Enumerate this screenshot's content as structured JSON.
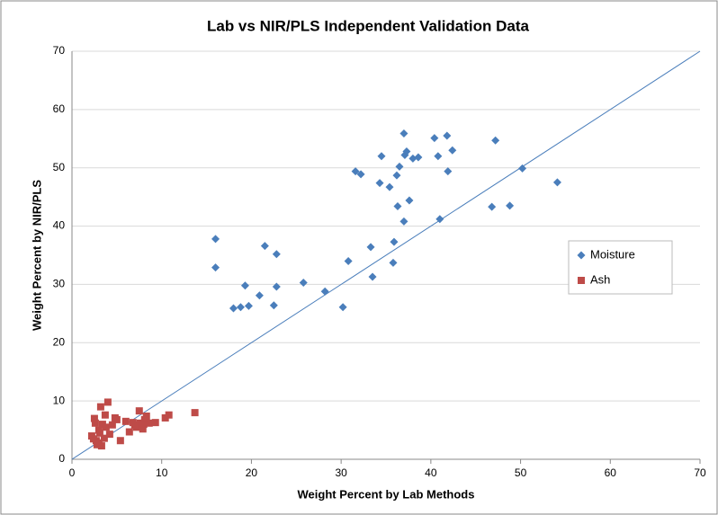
{
  "chart_data": {
    "type": "scatter",
    "title": "Lab vs NIR/PLS Independent Validation Data",
    "x_label": "Weight Percent by Lab Methods",
    "y_label": "Weight Percent by NIR/PLS",
    "xlim": [
      0,
      70
    ],
    "ylim": [
      0,
      70
    ],
    "xticks": [
      0,
      10,
      20,
      30,
      40,
      50,
      60,
      70
    ],
    "yticks": [
      0,
      10,
      20,
      30,
      40,
      50,
      60,
      70
    ],
    "grid": true,
    "legend": "right",
    "series": [
      {
        "name": "Moisture",
        "color": "#4a7ebb",
        "marker": "diamond",
        "x": [
          16,
          16,
          18,
          18.8,
          19.3,
          19.7,
          20.9,
          21.5,
          22.5,
          22.8,
          22.8,
          25.8,
          28.2,
          30.2,
          30.8,
          31.6,
          32.2,
          33.3,
          33.5,
          34.3,
          34.5,
          35.4,
          35.8,
          35.9,
          36.2,
          36.3,
          36.5,
          37,
          37,
          37.1,
          37.3,
          37.6,
          38,
          38.6,
          40.4,
          40.8,
          41,
          41.8,
          41.9,
          42.4,
          46.8,
          47.2,
          48.8,
          50.2,
          54.1
        ],
        "values": [
          37.8,
          32.9,
          25.9,
          26.1,
          29.8,
          26.3,
          28.1,
          36.6,
          26.4,
          29.6,
          35.2,
          30.3,
          28.8,
          26.1,
          34,
          49.4,
          48.9,
          36.4,
          31.3,
          47.4,
          52,
          46.7,
          33.7,
          37.3,
          48.7,
          43.4,
          50.2,
          55.9,
          40.8,
          52.2,
          52.8,
          44.4,
          51.6,
          51.8,
          55.1,
          52,
          41.2,
          55.5,
          49.4,
          53,
          43.3,
          54.7,
          43.5,
          49.9,
          47.5
        ]
      },
      {
        "name": "Ash",
        "color": "#be4b48",
        "marker": "square",
        "x": [
          2.2,
          2.5,
          2.6,
          2.7,
          2.8,
          3,
          3.1,
          3.2,
          3.3,
          3.4,
          3.6,
          3.7,
          3.8,
          4,
          4.2,
          4.5,
          4.8,
          5.4,
          6,
          6.4,
          6.8,
          7.2,
          7.5,
          7.6,
          7.9,
          8.1,
          8.3,
          8.6,
          9.3,
          10.4,
          10.8,
          13.7,
          2.4,
          3,
          5,
          8,
          7
        ],
        "values": [
          4,
          7,
          6.2,
          3.2,
          2.5,
          5,
          4.5,
          9,
          2.3,
          6,
          3.6,
          7.6,
          5.5,
          9.8,
          4.3,
          5.9,
          7.1,
          3.2,
          6.5,
          4.7,
          6.3,
          5.5,
          8.3,
          6.2,
          5.2,
          6.8,
          7.4,
          6.2,
          6.3,
          7.1,
          7.6,
          8,
          3.5,
          2.8,
          6.8,
          6,
          5.9
        ]
      }
    ]
  }
}
